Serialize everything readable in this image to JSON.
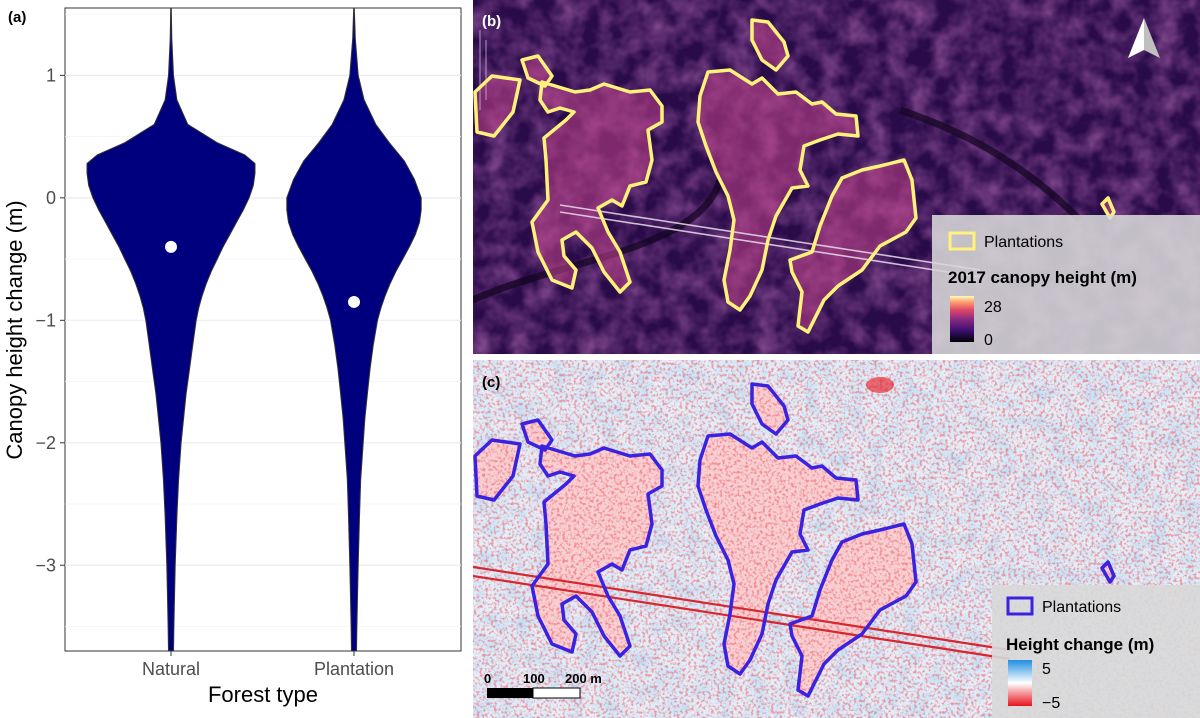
{
  "chart_data": [
    {
      "type": "violin",
      "panel_label": "(a)",
      "title": "",
      "xlabel": "Forest type",
      "ylabel": "Canopy height change (m)",
      "ylim": [
        -3.7,
        1.55
      ],
      "yticks": [
        1,
        0,
        -1,
        -2,
        -3
      ],
      "ytick_labels": [
        "1",
        "0",
        "−1",
        "−2",
        "−3"
      ],
      "categories": [
        "Natural",
        "Plantation"
      ],
      "grid": true,
      "fill_color": "#00007f",
      "marker_color": "#ffffff",
      "series": [
        {
          "category": "Natural",
          "mean": -0.4,
          "profile": [
            [
              1.55,
              0.004
            ],
            [
              1.3,
              0.01
            ],
            [
              1.0,
              0.03
            ],
            [
              0.8,
              0.07
            ],
            [
              0.6,
              0.2
            ],
            [
              0.45,
              0.55
            ],
            [
              0.35,
              0.88
            ],
            [
              0.28,
              1.0
            ],
            [
              0.2,
              1.0
            ],
            [
              0.1,
              0.98
            ],
            [
              0.0,
              0.93
            ],
            [
              -0.1,
              0.86
            ],
            [
              -0.2,
              0.78
            ],
            [
              -0.3,
              0.7
            ],
            [
              -0.4,
              0.62
            ],
            [
              -0.5,
              0.55
            ],
            [
              -0.6,
              0.48
            ],
            [
              -0.7,
              0.42
            ],
            [
              -0.8,
              0.37
            ],
            [
              -0.9,
              0.33
            ],
            [
              -1.0,
              0.3
            ],
            [
              -1.2,
              0.26
            ],
            [
              -1.4,
              0.22
            ],
            [
              -1.6,
              0.18
            ],
            [
              -1.8,
              0.15
            ],
            [
              -2.0,
              0.12
            ],
            [
              -2.3,
              0.09
            ],
            [
              -2.6,
              0.07
            ],
            [
              -3.0,
              0.05
            ],
            [
              -3.3,
              0.04
            ],
            [
              -3.5,
              0.035
            ],
            [
              -3.7,
              0.03
            ]
          ]
        },
        {
          "category": "Plantation",
          "mean": -0.85,
          "profile": [
            [
              1.55,
              0.004
            ],
            [
              1.3,
              0.015
            ],
            [
              1.0,
              0.05
            ],
            [
              0.8,
              0.12
            ],
            [
              0.6,
              0.26
            ],
            [
              0.45,
              0.42
            ],
            [
              0.3,
              0.6
            ],
            [
              0.15,
              0.72
            ],
            [
              0.0,
              0.8
            ],
            [
              -0.1,
              0.8
            ],
            [
              -0.2,
              0.78
            ],
            [
              -0.3,
              0.73
            ],
            [
              -0.4,
              0.66
            ],
            [
              -0.5,
              0.58
            ],
            [
              -0.6,
              0.5
            ],
            [
              -0.7,
              0.43
            ],
            [
              -0.8,
              0.37
            ],
            [
              -0.9,
              0.32
            ],
            [
              -1.0,
              0.28
            ],
            [
              -1.2,
              0.23
            ],
            [
              -1.4,
              0.19
            ],
            [
              -1.6,
              0.16
            ],
            [
              -1.8,
              0.13
            ],
            [
              -2.0,
              0.11
            ],
            [
              -2.3,
              0.08
            ],
            [
              -2.6,
              0.065
            ],
            [
              -3.0,
              0.05
            ],
            [
              -3.3,
              0.04
            ],
            [
              -3.5,
              0.035
            ],
            [
              -3.7,
              0.03
            ]
          ]
        }
      ]
    },
    {
      "type": "map",
      "panel_label": "(b)",
      "legend_outline_label": "Plantations",
      "legend_title": "2017 canopy height (m)",
      "colorbar_max": "28",
      "colorbar_min": "0",
      "outline_color": "#fff27a",
      "colormap": [
        "#000004",
        "#3b0f70",
        "#8c2981",
        "#de4968",
        "#fe9f6d",
        "#fcfdbf"
      ],
      "north_arrow": "north-arrow-icon"
    },
    {
      "type": "map",
      "panel_label": "(c)",
      "legend_outline_label": "Plantations",
      "legend_title": "Height change (m)",
      "colorbar_max": "5",
      "colorbar_min": "−5",
      "outline_color": "#3a22e0",
      "colormap": [
        "#e8121b",
        "#ffffff",
        "#1f8fe0"
      ],
      "scale_bar": [
        "0",
        "100",
        "200 m"
      ]
    }
  ]
}
